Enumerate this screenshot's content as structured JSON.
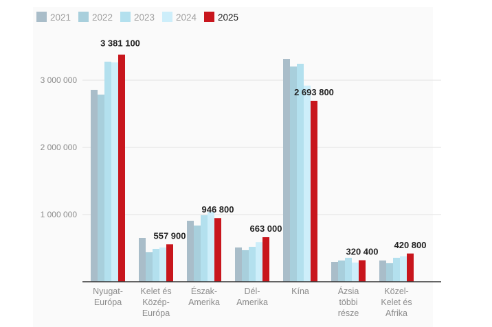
{
  "chart_data": {
    "type": "bar",
    "categories": [
      [
        "Nyugat-",
        "Európa"
      ],
      [
        "Kelet és",
        "Közép-",
        "Európa"
      ],
      [
        "Észak-",
        "Amerika"
      ],
      [
        "Dél-",
        "Amerika"
      ],
      [
        "Kína"
      ],
      [
        "Ázsia",
        "többi",
        "része"
      ],
      [
        "Közel-",
        "Kelet és",
        "Afrika"
      ]
    ],
    "series": [
      {
        "name": "2021",
        "color": "#a9bdc9",
        "values": [
          2857000,
          653000,
          908000,
          510000,
          3316000,
          296000,
          316000
        ]
      },
      {
        "name": "2022",
        "color": "#a8cfdc",
        "values": [
          2786000,
          439000,
          837000,
          470000,
          3204000,
          316000,
          276000
        ]
      },
      {
        "name": "2023",
        "color": "#b3e0ee",
        "values": [
          3276000,
          490000,
          990000,
          520000,
          3245000,
          357000,
          357000
        ]
      },
      {
        "name": "2024",
        "color": "#cdeefa",
        "values": [
          3265000,
          510000,
          1040000,
          590000,
          2920000,
          286000,
          378000
        ]
      },
      {
        "name": "2025",
        "color": "#c8161d",
        "values": [
          3381100,
          557900,
          946800,
          663000,
          2693800,
          320400,
          420800
        ]
      }
    ],
    "data_labels": [
      "3 381 100",
      "557 900",
      "946 800",
      "663 000",
      "2 693 800",
      "320 400",
      "420 800"
    ],
    "yticks": [
      {
        "value": 1000000,
        "label": "1 000 000"
      },
      {
        "value": 2000000,
        "label": "2 000 000"
      },
      {
        "value": 3000000,
        "label": "3 000 000"
      }
    ],
    "ylim": [
      0,
      3600000
    ],
    "grid": true,
    "legend": "top-left",
    "highlight_series": "2025"
  }
}
